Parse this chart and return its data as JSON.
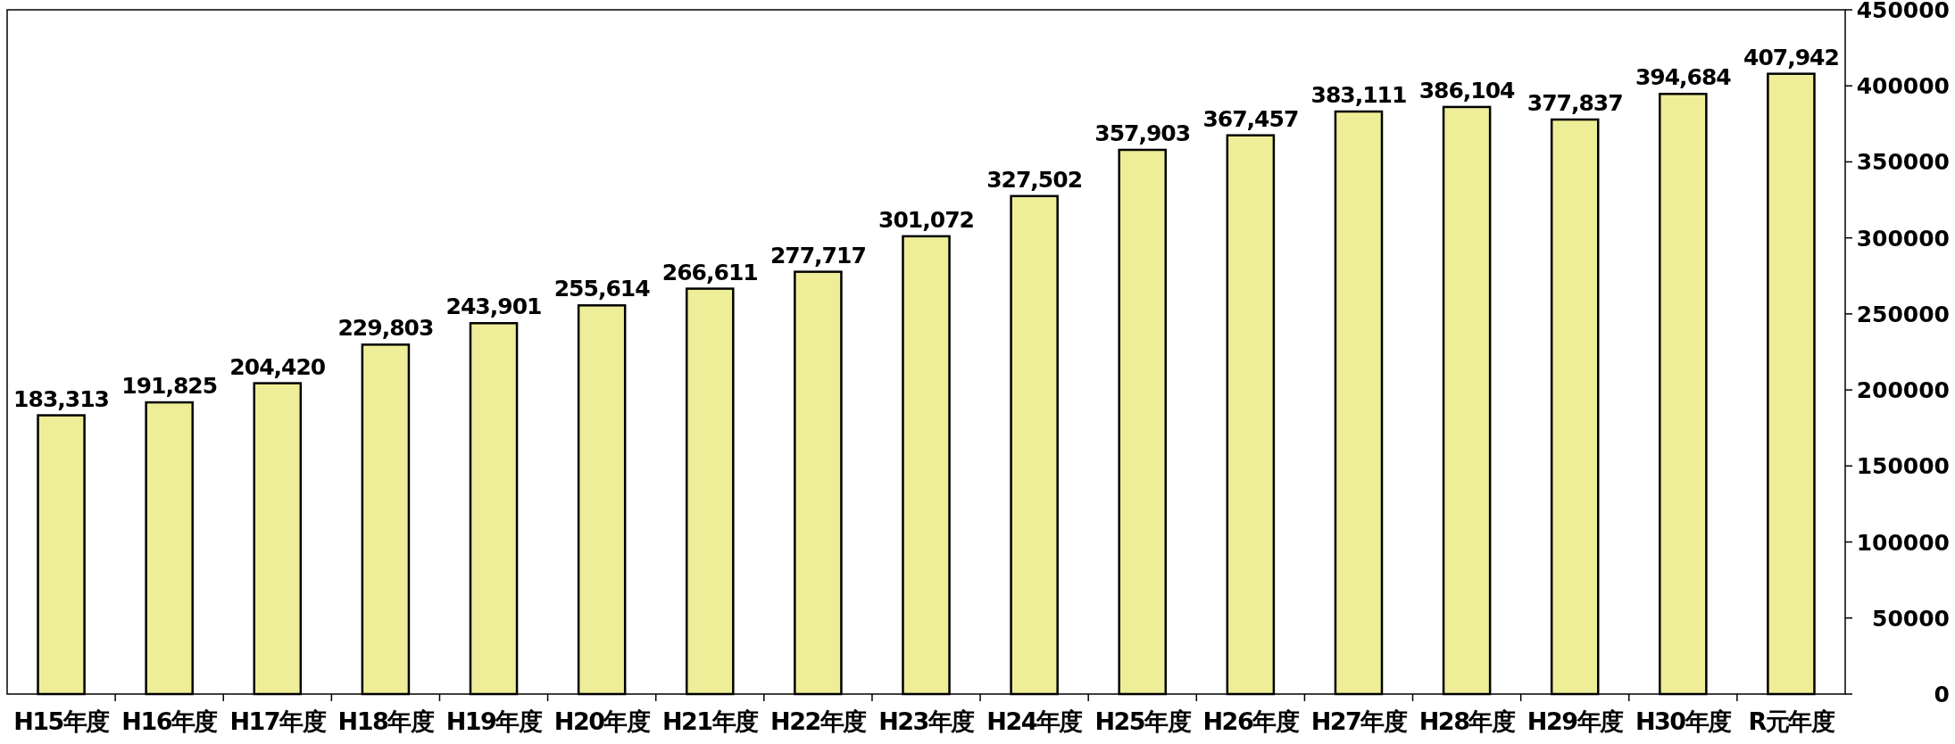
{
  "chart_data": {
    "type": "bar",
    "categories": [
      "H15年度",
      "H16年度",
      "H17年度",
      "H18年度",
      "H19年度",
      "H20年度",
      "H21年度",
      "H22年度",
      "H23年度",
      "H24年度",
      "H25年度",
      "H26年度",
      "H27年度",
      "H28年度",
      "H29年度",
      "H30年度",
      "R元年度"
    ],
    "values": [
      183313,
      191825,
      204420,
      229803,
      243901,
      255614,
      266611,
      277717,
      301072,
      327502,
      357903,
      367457,
      383111,
      386104,
      377837,
      394684,
      407942
    ],
    "color": "#eeee99",
    "value_labels": [
      "183,313",
      "191,825",
      "204,420",
      "229,803",
      "243,901",
      "255,614",
      "266,611",
      "277,717",
      "301,072",
      "327,502",
      "357,903",
      "367,457",
      "383,111",
      "386,104",
      "377,837",
      "394,684",
      "407,942"
    ],
    "ylim": [
      0,
      450000
    ],
    "yticks": [
      0,
      50000,
      100000,
      150000,
      200000,
      250000,
      300000,
      350000,
      400000,
      450000
    ],
    "grid": false
  }
}
